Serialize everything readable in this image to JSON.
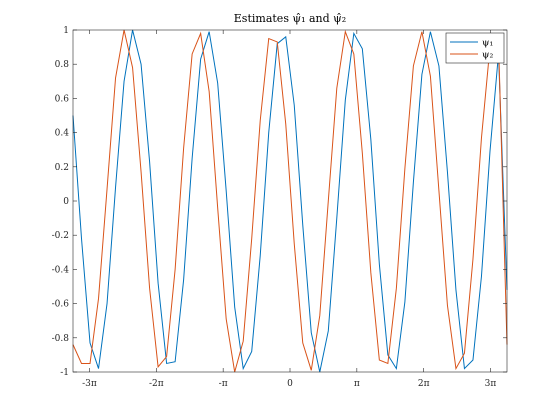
{
  "chart_data": {
    "type": "line",
    "title": "Estimates ψ̂₁ and ψ̂₂",
    "xlabel": "",
    "ylabel": "",
    "xlim": [
      -10.2,
      10.2
    ],
    "ylim": [
      -1,
      1
    ],
    "grid": false,
    "legend_position": "top-right",
    "x_ticks": [
      {
        "value": -9.4248,
        "label": "-3π"
      },
      {
        "value": -6.2832,
        "label": "-2π"
      },
      {
        "value": -3.1416,
        "label": "-π"
      },
      {
        "value": 0,
        "label": "0"
      },
      {
        "value": 3.1416,
        "label": "π"
      },
      {
        "value": 6.2832,
        "label": "2π"
      },
      {
        "value": 9.4248,
        "label": "3π"
      }
    ],
    "y_ticks": [
      {
        "value": 1,
        "label": "1"
      },
      {
        "value": 0.8,
        "label": "0.8"
      },
      {
        "value": 0.6,
        "label": "0.6"
      },
      {
        "value": 0.4,
        "label": "0.4"
      },
      {
        "value": 0.2,
        "label": "0.2"
      },
      {
        "value": 0,
        "label": "0"
      },
      {
        "value": -0.2,
        "label": "-0.2"
      },
      {
        "value": -0.4,
        "label": "-0.4"
      },
      {
        "value": -0.6,
        "label": "-0.6"
      },
      {
        "value": -0.8,
        "label": "-0.8"
      },
      {
        "value": -1,
        "label": "-1"
      }
    ],
    "series": [
      {
        "name": "ψ₁",
        "color": "#0072BD",
        "x": [
          -10.2,
          -9.8,
          -9.4,
          -9.0,
          -8.6,
          -8.2,
          -7.8,
          -7.4,
          -7.0,
          -6.6,
          -6.2,
          -5.8,
          -5.4,
          -5.0,
          -4.6,
          -4.2,
          -3.8,
          -3.4,
          -3.0,
          -2.6,
          -2.2,
          -1.8,
          -1.4,
          -1.0,
          -0.6,
          -0.2,
          0.2,
          0.6,
          1.0,
          1.4,
          1.8,
          2.2,
          2.6,
          3.0,
          3.4,
          3.8,
          4.2,
          4.6,
          5.0,
          5.4,
          5.8,
          6.2,
          6.6,
          7.0,
          7.4,
          7.8,
          8.2,
          8.6,
          9.0,
          9.4,
          9.8,
          10.2
        ],
        "y": [
          0.5,
          -0.22,
          -0.83,
          -0.98,
          -0.6,
          0.08,
          0.7,
          1.0,
          0.8,
          0.23,
          -0.48,
          -0.95,
          -0.94,
          -0.46,
          0.25,
          0.83,
          0.99,
          0.69,
          0.06,
          -0.62,
          -0.98,
          -0.88,
          -0.32,
          0.4,
          0.92,
          0.96,
          0.56,
          -0.14,
          -0.77,
          -1.0,
          -0.76,
          -0.1,
          0.59,
          0.98,
          0.89,
          0.36,
          -0.37,
          -0.9,
          -0.98,
          -0.59,
          0.11,
          0.74,
          0.99,
          0.79,
          0.17,
          -0.52,
          -0.98,
          -0.93,
          -0.44,
          0.29,
          0.86,
          -0.52
        ]
      },
      {
        "name": "ψ₂",
        "color": "#D95319",
        "x": [
          -10.2,
          -9.8,
          -9.4,
          -9.0,
          -8.6,
          -8.2,
          -7.8,
          -7.4,
          -7.0,
          -6.6,
          -6.2,
          -5.8,
          -5.4,
          -5.0,
          -4.6,
          -4.2,
          -3.8,
          -3.4,
          -3.0,
          -2.6,
          -2.2,
          -1.8,
          -1.4,
          -1.0,
          -0.6,
          -0.2,
          0.2,
          0.6,
          1.0,
          1.4,
          1.8,
          2.2,
          2.6,
          3.0,
          3.4,
          3.8,
          4.2,
          4.6,
          5.0,
          5.4,
          5.8,
          6.2,
          6.6,
          7.0,
          7.4,
          7.8,
          8.2,
          8.6,
          9.0,
          9.4,
          9.8,
          10.2
        ],
        "y": [
          -0.84,
          -0.95,
          -0.95,
          -0.57,
          0.07,
          0.72,
          1.0,
          0.78,
          0.17,
          -0.51,
          -0.97,
          -0.91,
          -0.4,
          0.31,
          0.86,
          0.98,
          0.64,
          -0.04,
          -0.69,
          -1.0,
          -0.82,
          -0.22,
          0.47,
          0.95,
          0.93,
          0.45,
          -0.25,
          -0.83,
          -0.99,
          -0.67,
          0.0,
          0.66,
          0.99,
          0.86,
          0.28,
          -0.42,
          -0.93,
          -0.95,
          -0.51,
          0.19,
          0.79,
          0.99,
          0.73,
          0.06,
          -0.61,
          -0.98,
          -0.89,
          -0.34,
          0.37,
          0.9,
          0.94,
          -0.84
        ]
      }
    ]
  }
}
